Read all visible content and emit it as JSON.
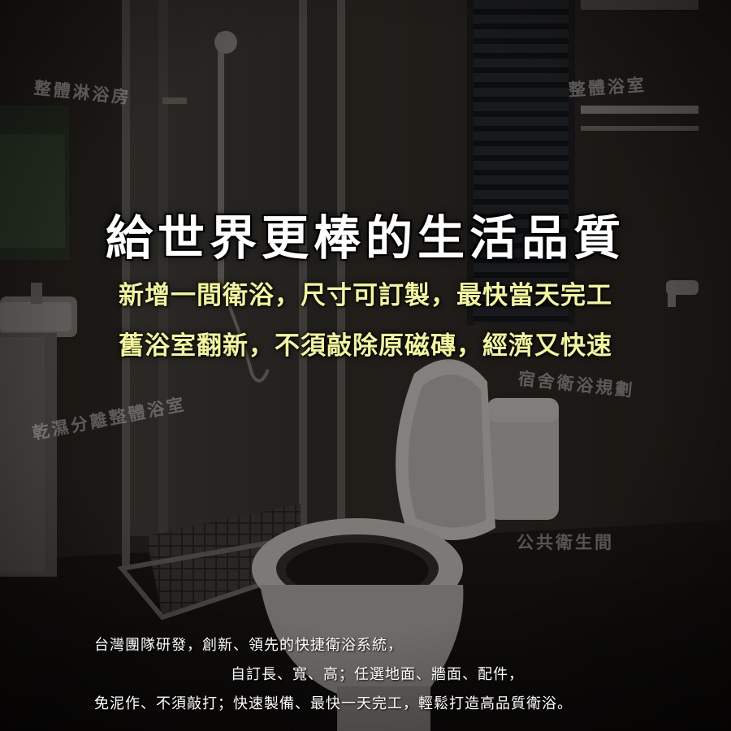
{
  "headline": "給世界更棒的生活品質",
  "subheadlines": [
    "新增一間衛浴，尺寸可訂製，最快當天完工",
    "舊浴室翻新，不須敲除原磁磚，經濟又快速"
  ],
  "watermarks": [
    "整體淋浴房",
    "整體浴室",
    "乾濕分離整體浴室",
    "宿舍衛浴規劃",
    "公共衛生間"
  ],
  "body_lines": [
    "台灣團隊研發，創新、領先的快捷衛浴系統，",
    "自訂長、寬、高；任選地面、牆面、配件，",
    "免泥作、不須敲打；快速製備、最快一天完工，輕鬆打造高品質衛浴。"
  ],
  "colors": {
    "headline": "#ffffff",
    "subheadline": "#f2f59a",
    "body": "#ffffff",
    "watermark": "#c8c8c8"
  }
}
